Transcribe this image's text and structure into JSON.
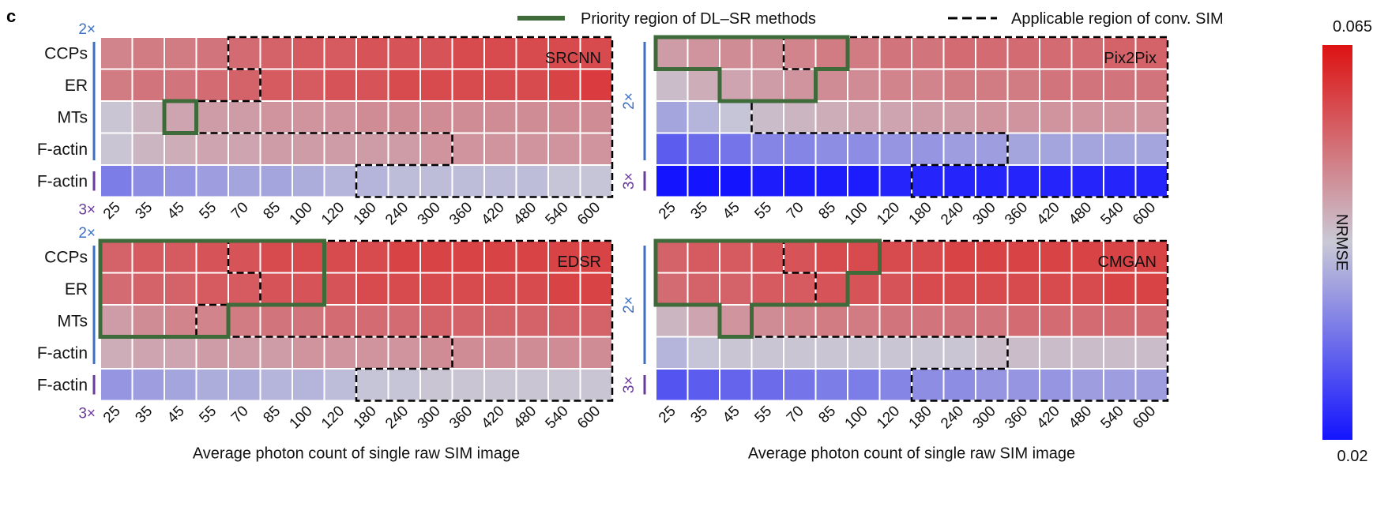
{
  "panel_letter": "c",
  "legend": {
    "priority_label": "Priority region of DL–SR methods",
    "applicable_label": "Applicable region of conv. SIM",
    "priority_color": "#3f6b3a",
    "applicable_color": "#000000"
  },
  "colorbar": {
    "min_label": "0.02",
    "max_label": "0.065",
    "title": "NRMSE",
    "colors": [
      "#1414ff",
      "#c9c9d6",
      "#dd1212"
    ]
  },
  "scale_labels": {
    "upper": "2×",
    "lower": "3×"
  },
  "chart_data": [
    {
      "type": "heatmap",
      "model": "SRCNN",
      "categories": [
        "25",
        "35",
        "45",
        "55",
        "70",
        "85",
        "100",
        "120",
        "180",
        "240",
        "300",
        "360",
        "420",
        "480",
        "540",
        "600"
      ],
      "rows": [
        "CCPs",
        "ER",
        "MTs",
        "F-actin",
        "F-actin"
      ],
      "row_scales": [
        "2×",
        "2×",
        "2×",
        "2×",
        "3×"
      ],
      "vmin": 0.02,
      "vmax": 0.065,
      "xlabel": "Average photon count of single raw SIM image",
      "ylabel": "",
      "values": [
        [
          0.051,
          0.052,
          0.052,
          0.053,
          0.054,
          0.055,
          0.056,
          0.056,
          0.057,
          0.057,
          0.057,
          0.058,
          0.058,
          0.058,
          0.058,
          0.058
        ],
        [
          0.052,
          0.053,
          0.053,
          0.054,
          0.055,
          0.056,
          0.056,
          0.057,
          0.057,
          0.058,
          0.058,
          0.058,
          0.058,
          0.058,
          0.059,
          0.06
        ],
        [
          0.043,
          0.045,
          0.047,
          0.048,
          0.048,
          0.049,
          0.049,
          0.049,
          0.05,
          0.05,
          0.05,
          0.05,
          0.05,
          0.05,
          0.05,
          0.05
        ],
        [
          0.043,
          0.045,
          0.046,
          0.047,
          0.047,
          0.048,
          0.048,
          0.048,
          0.048,
          0.048,
          0.049,
          0.049,
          0.049,
          0.049,
          0.049,
          0.049
        ],
        [
          0.033,
          0.035,
          0.036,
          0.037,
          0.038,
          0.038,
          0.039,
          0.04,
          0.04,
          0.041,
          0.041,
          0.041,
          0.041,
          0.041,
          0.042,
          0.042
        ]
      ]
    },
    {
      "type": "heatmap",
      "model": "Pix2Pix",
      "categories": [
        "25",
        "35",
        "45",
        "55",
        "70",
        "85",
        "100",
        "120",
        "180",
        "240",
        "300",
        "360",
        "420",
        "480",
        "540",
        "600"
      ],
      "rows": [
        "",
        "",
        "",
        "",
        ""
      ],
      "row_scales": [
        "2×",
        "2×",
        "2×",
        "2×",
        "3×"
      ],
      "vmin": 0.02,
      "vmax": 0.065,
      "xlabel": "Average photon count of single raw SIM image",
      "ylabel": "",
      "values": [
        [
          0.048,
          0.049,
          0.05,
          0.05,
          0.051,
          0.052,
          0.052,
          0.053,
          0.053,
          0.054,
          0.054,
          0.054,
          0.054,
          0.054,
          0.055,
          0.055
        ],
        [
          0.044,
          0.046,
          0.047,
          0.048,
          0.049,
          0.05,
          0.05,
          0.051,
          0.051,
          0.052,
          0.052,
          0.052,
          0.053,
          0.053,
          0.053,
          0.053
        ],
        [
          0.038,
          0.04,
          0.042,
          0.044,
          0.045,
          0.046,
          0.047,
          0.047,
          0.048,
          0.048,
          0.049,
          0.049,
          0.049,
          0.049,
          0.049,
          0.049
        ],
        [
          0.029,
          0.031,
          0.032,
          0.034,
          0.034,
          0.035,
          0.035,
          0.036,
          0.036,
          0.037,
          0.037,
          0.038,
          0.038,
          0.038,
          0.038,
          0.038
        ],
        [
          0.02,
          0.02,
          0.02,
          0.021,
          0.021,
          0.021,
          0.021,
          0.022,
          0.022,
          0.022,
          0.022,
          0.022,
          0.022,
          0.022,
          0.022,
          0.022
        ]
      ]
    },
    {
      "type": "heatmap",
      "model": "EDSR",
      "categories": [
        "25",
        "35",
        "45",
        "55",
        "70",
        "85",
        "100",
        "120",
        "180",
        "240",
        "300",
        "360",
        "420",
        "480",
        "540",
        "600"
      ],
      "rows": [
        "CCPs",
        "ER",
        "MTs",
        "F-actin",
        "F-actin"
      ],
      "row_scales": [
        "2×",
        "2×",
        "2×",
        "2×",
        "3×"
      ],
      "vmin": 0.02,
      "vmax": 0.065,
      "xlabel": "Average photon count of single raw SIM image",
      "ylabel": "",
      "values": [
        [
          0.055,
          0.056,
          0.056,
          0.057,
          0.057,
          0.058,
          0.058,
          0.058,
          0.058,
          0.059,
          0.059,
          0.059,
          0.059,
          0.059,
          0.059,
          0.059
        ],
        [
          0.054,
          0.055,
          0.055,
          0.056,
          0.056,
          0.057,
          0.057,
          0.057,
          0.058,
          0.058,
          0.058,
          0.058,
          0.058,
          0.058,
          0.059,
          0.059
        ],
        [
          0.048,
          0.05,
          0.051,
          0.051,
          0.052,
          0.053,
          0.053,
          0.054,
          0.054,
          0.054,
          0.055,
          0.055,
          0.055,
          0.055,
          0.055,
          0.055
        ],
        [
          0.046,
          0.047,
          0.047,
          0.048,
          0.048,
          0.048,
          0.049,
          0.049,
          0.049,
          0.049,
          0.05,
          0.05,
          0.05,
          0.05,
          0.05,
          0.05
        ],
        [
          0.036,
          0.037,
          0.038,
          0.039,
          0.039,
          0.04,
          0.04,
          0.041,
          0.042,
          0.042,
          0.043,
          0.043,
          0.043,
          0.043,
          0.043,
          0.043
        ]
      ]
    },
    {
      "type": "heatmap",
      "model": "CMGAN",
      "categories": [
        "25",
        "35",
        "45",
        "55",
        "70",
        "85",
        "100",
        "120",
        "180",
        "240",
        "300",
        "360",
        "420",
        "480",
        "540",
        "600"
      ],
      "rows": [
        "",
        "",
        "",
        "",
        ""
      ],
      "row_scales": [
        "2×",
        "2×",
        "2×",
        "2×",
        "3×"
      ],
      "vmin": 0.02,
      "vmax": 0.065,
      "xlabel": "Average photon count of single raw SIM image",
      "ylabel": "",
      "values": [
        [
          0.055,
          0.056,
          0.056,
          0.057,
          0.057,
          0.058,
          0.058,
          0.058,
          0.058,
          0.059,
          0.059,
          0.059,
          0.059,
          0.059,
          0.059,
          0.059
        ],
        [
          0.054,
          0.055,
          0.055,
          0.056,
          0.056,
          0.057,
          0.057,
          0.057,
          0.058,
          0.058,
          0.058,
          0.058,
          0.058,
          0.058,
          0.059,
          0.059
        ],
        [
          0.045,
          0.047,
          0.049,
          0.05,
          0.051,
          0.052,
          0.052,
          0.053,
          0.053,
          0.053,
          0.053,
          0.054,
          0.054,
          0.054,
          0.054,
          0.054
        ],
        [
          0.04,
          0.042,
          0.043,
          0.043,
          0.043,
          0.043,
          0.043,
          0.043,
          0.043,
          0.043,
          0.044,
          0.044,
          0.044,
          0.044,
          0.044,
          0.044
        ],
        [
          0.028,
          0.029,
          0.03,
          0.031,
          0.032,
          0.033,
          0.033,
          0.034,
          0.035,
          0.035,
          0.036,
          0.036,
          0.036,
          0.037,
          0.037,
          0.037
        ]
      ]
    }
  ]
}
